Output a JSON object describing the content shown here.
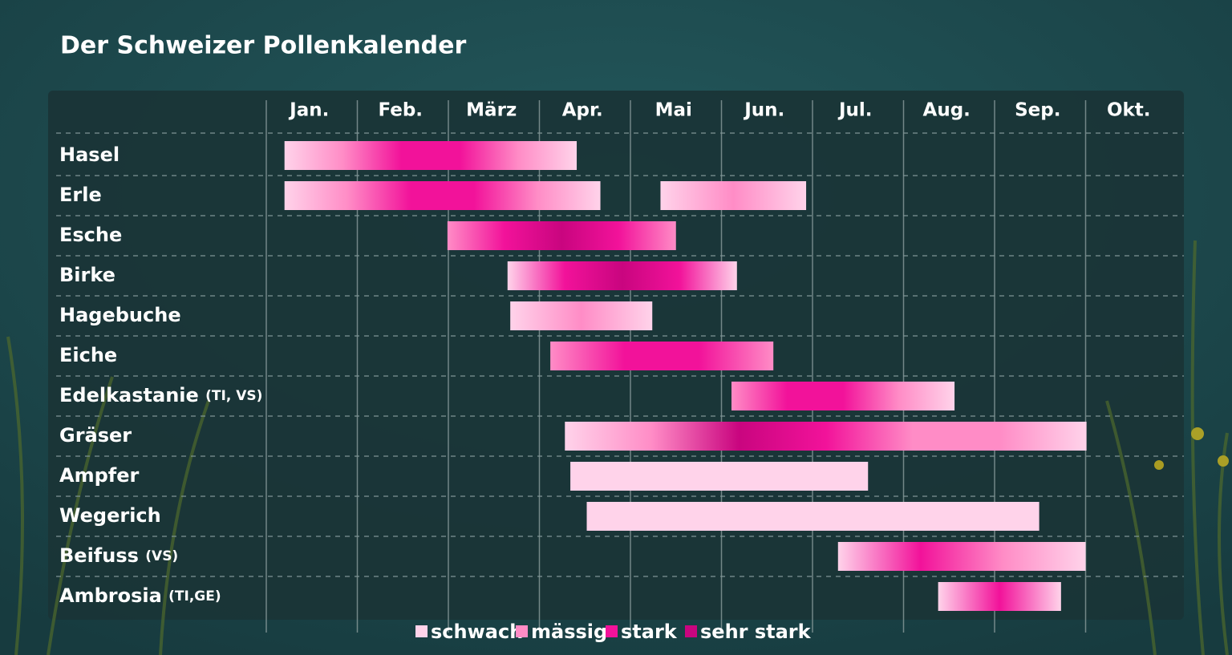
{
  "chart_data": {
    "type": "gantt",
    "title": "Der Schweizer Pollenkalender",
    "categories": [
      "Jan.",
      "Feb.",
      "März",
      "Apr.",
      "Mai",
      "Jun.",
      "Jul.",
      "Aug.",
      "Sep.",
      "Okt."
    ],
    "xlim": [
      0,
      10
    ],
    "legend": [
      {
        "name": "schwach",
        "color": "#ffd3ea"
      },
      {
        "name": "mässig",
        "color": "#ff8cc6"
      },
      {
        "name": "stark",
        "color": "#f2129a"
      },
      {
        "name": "sehr stark",
        "color": "#c9057f"
      }
    ],
    "rows": [
      {
        "name": "Hasel",
        "bars": [
          {
            "start": 0.2,
            "end": 3.41,
            "intensity": [
              0,
              1,
              2,
              2,
              1,
              0
            ]
          }
        ]
      },
      {
        "name": "Erle",
        "bars": [
          {
            "start": 0.2,
            "end": 3.67,
            "intensity": [
              0,
              1,
              2,
              2,
              1,
              0
            ]
          },
          {
            "start": 4.33,
            "end": 5.93,
            "intensity": [
              0,
              1,
              0
            ]
          }
        ]
      },
      {
        "name": "Esche",
        "bars": [
          {
            "start": 1.99,
            "end": 4.5,
            "intensity": [
              1,
              2,
              3,
              2,
              1
            ]
          }
        ]
      },
      {
        "name": "Birke",
        "bars": [
          {
            "start": 2.65,
            "end": 5.17,
            "intensity": [
              0,
              2,
              3,
              2,
              0
            ]
          }
        ]
      },
      {
        "name": "Hagebuche",
        "bars": [
          {
            "start": 2.68,
            "end": 4.24,
            "intensity": [
              0,
              1,
              0
            ]
          }
        ]
      },
      {
        "name": "Eiche",
        "bars": [
          {
            "start": 3.12,
            "end": 5.57,
            "intensity": [
              1,
              2,
              2,
              1
            ]
          }
        ]
      },
      {
        "name": "Edelkastanie",
        "note": "(TI, VS)",
        "bars": [
          {
            "start": 5.11,
            "end": 7.56,
            "intensity": [
              1,
              2,
              2,
              1,
              0
            ]
          }
        ]
      },
      {
        "name": "Gräser",
        "bars": [
          {
            "start": 3.28,
            "end": 9.01,
            "intensity": [
              0,
              1,
              3,
              2,
              1,
              1,
              0
            ]
          }
        ]
      },
      {
        "name": "Ampfer",
        "bars": [
          {
            "start": 3.34,
            "end": 6.61,
            "intensity": [
              0
            ]
          }
        ]
      },
      {
        "name": "Wegerich",
        "bars": [
          {
            "start": 3.52,
            "end": 8.49,
            "intensity": [
              0
            ]
          }
        ]
      },
      {
        "name": "Beifuss",
        "note": "(VS)",
        "bars": [
          {
            "start": 6.28,
            "end": 9.0,
            "intensity": [
              0,
              2,
              1,
              0
            ]
          }
        ]
      },
      {
        "name": "Ambrosia",
        "note": "(TI,GE)",
        "bars": [
          {
            "start": 7.38,
            "end": 8.73,
            "intensity": [
              0,
              2,
              0
            ]
          }
        ]
      }
    ]
  }
}
